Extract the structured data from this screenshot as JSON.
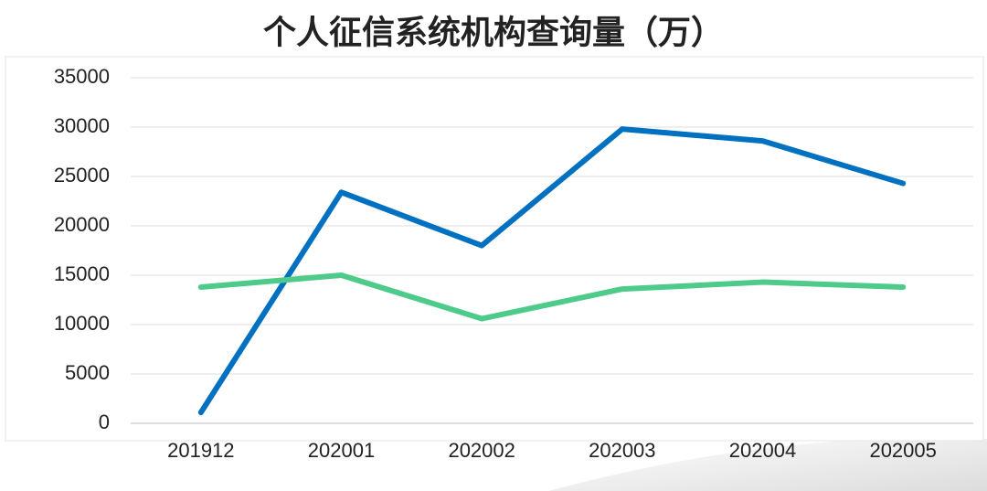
{
  "chart_data": {
    "type": "line",
    "title": "个人征信系统机构查询量（万）",
    "categories": [
      "201912",
      "202001",
      "202002",
      "202003",
      "202004",
      "202005"
    ],
    "series": [
      {
        "color": "#0070c0",
        "values": [
          1100,
          23400,
          18000,
          29800,
          28600,
          24300
        ]
      },
      {
        "color": "#4ecb8a",
        "values": [
          13800,
          15000,
          10600,
          13600,
          14300,
          13800
        ]
      }
    ],
    "ylim": [
      0,
      35000
    ],
    "yticks": [
      0,
      5000,
      10000,
      15000,
      20000,
      25000,
      30000,
      35000
    ],
    "grid": true
  }
}
